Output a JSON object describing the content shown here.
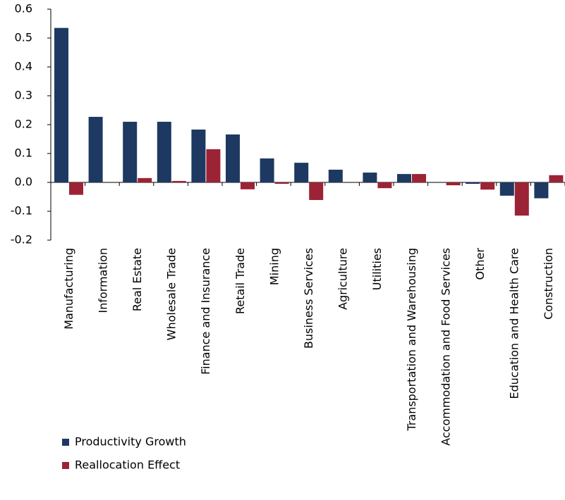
{
  "chart_data": {
    "type": "bar",
    "categories": [
      "Manufacturing",
      "Information",
      "Real Estate",
      "Wholesale Trade",
      "Finance and Insurance",
      "Retail Trade",
      "Mining",
      "Business Services",
      "Agriculture",
      "Utilities",
      "Transportation and Warehousing",
      "Accommodation and Food Services",
      "Other",
      "Education and Health Care",
      "Construction"
    ],
    "series": [
      {
        "name": "Productivity Growth",
        "color": "#1d3961",
        "values": [
          0.535,
          0.227,
          0.21,
          0.21,
          0.183,
          0.166,
          0.083,
          0.068,
          0.044,
          0.034,
          0.029,
          0,
          -0.005,
          -0.046,
          -0.055
        ]
      },
      {
        "name": "Reallocation Effect",
        "color": "#9b2335",
        "values": [
          -0.043,
          0,
          0.015,
          0.005,
          0.115,
          -0.024,
          -0.005,
          -0.061,
          0,
          -0.02,
          0.029,
          -0.01,
          -0.025,
          -0.115,
          0.025
        ]
      }
    ],
    "ylim": [
      -0.2,
      0.6
    ],
    "yticks": [
      {
        "value": -0.2,
        "label": "-0.2"
      },
      {
        "value": -0.1,
        "label": "-0.1"
      },
      {
        "value": 0,
        "label": "0.0"
      },
      {
        "value": 0.1,
        "label": "0.1"
      },
      {
        "value": 0.2,
        "label": "0.2"
      },
      {
        "value": 0.3,
        "label": "0.3"
      },
      {
        "value": 0.4,
        "label": "0.4"
      },
      {
        "value": 0.5,
        "label": "0.5"
      },
      {
        "value": 0.6,
        "label": "0.6"
      }
    ],
    "legend": "bottom-left"
  }
}
